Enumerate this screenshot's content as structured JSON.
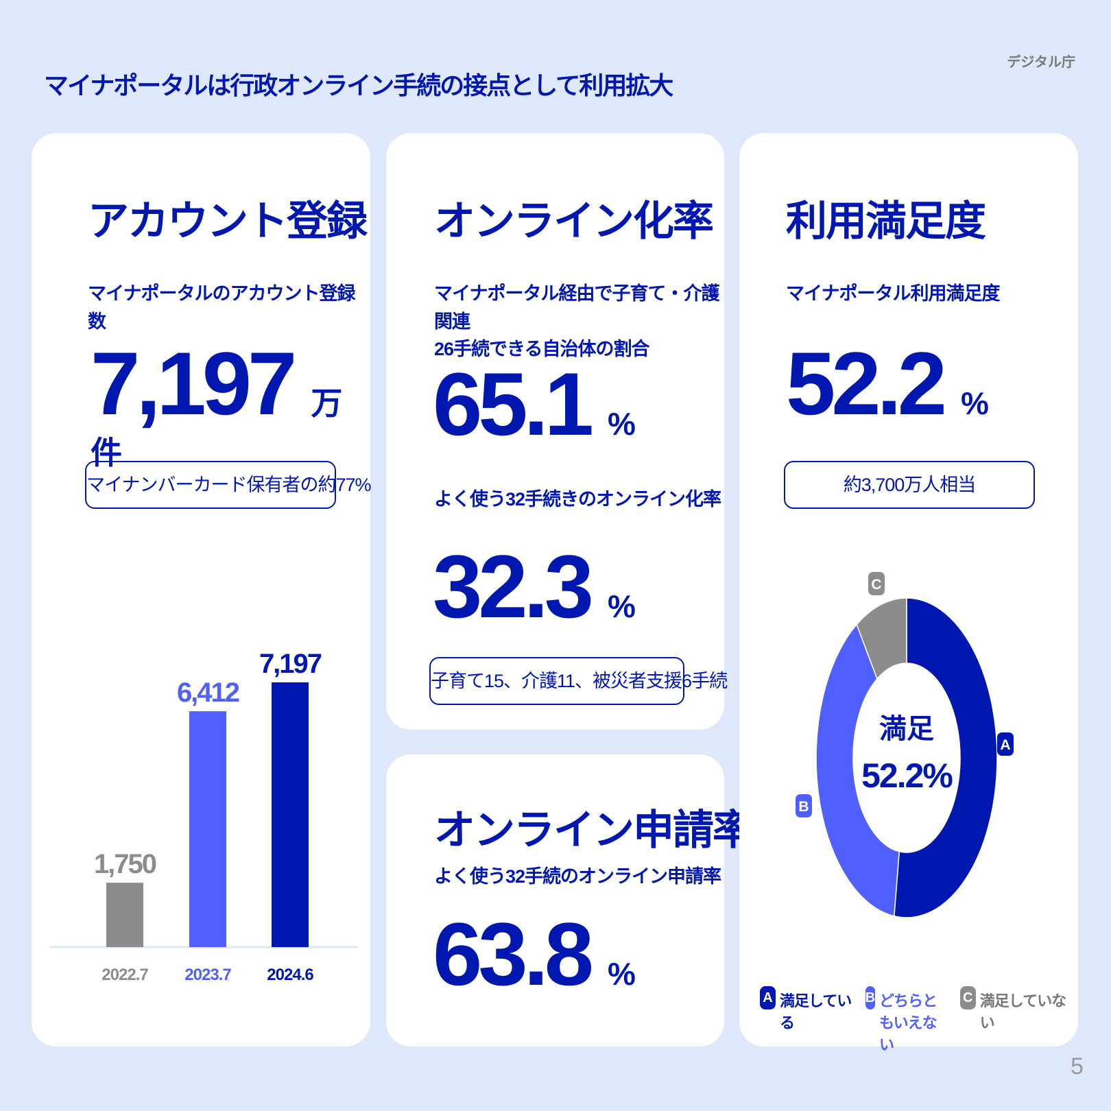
{
  "header": {
    "title": "マイナポータルは行政オンライン手続の接点として利用拡大",
    "org": "デジタル庁",
    "page_number": "5"
  },
  "account": {
    "heading": "アカウント登録",
    "subtitle": "マイナポータルのアカウント登録数",
    "value": "7,197",
    "unit": "万件",
    "note": "マイナンバーカード保有者の約77%"
  },
  "online_rate": {
    "heading": "オンライン化率",
    "subtitle1": "マイナポータル経由で子育て・介護関連",
    "subtitle2": "26手続できる自治体の割合",
    "value1": "65.1",
    "unit": "%",
    "subtitle3": "よく使う32手続きのオンライン化率",
    "value2": "32.3",
    "note": "子育て15、介護11、被災者支援6手続"
  },
  "application_rate": {
    "heading": "オンライン申請率",
    "subtitle": "よく使う32手続のオンライン申請率",
    "value": "63.8",
    "unit": "%"
  },
  "satisfaction": {
    "heading": "利用満足度",
    "subtitle": "マイナポータル利用満足度",
    "value": "52.2",
    "unit": "%",
    "note": "約3,700万人相当",
    "center_label": "満足",
    "center_value": "52.2%"
  },
  "chart_data": [
    {
      "type": "bar",
      "title": "アカウント登録数",
      "categories": [
        "2022.7",
        "2023.7",
        "2024.6"
      ],
      "values": [
        1750,
        6412,
        7197
      ],
      "labels": [
        "1,750",
        "6,412",
        "7,197"
      ],
      "colors": [
        "#8c8c8c",
        "#5060ff",
        "#0017b0"
      ],
      "unit": "万件"
    },
    {
      "type": "pie",
      "title": "利用満足度",
      "categories": [
        "A",
        "B",
        "C"
      ],
      "legend": [
        "満足している",
        "どちらともいえない",
        "満足していない"
      ],
      "values": [
        52.2,
        38.5,
        9.3
      ],
      "colors": [
        "#0017b0",
        "#5060ff",
        "#8c8c8c"
      ]
    }
  ]
}
